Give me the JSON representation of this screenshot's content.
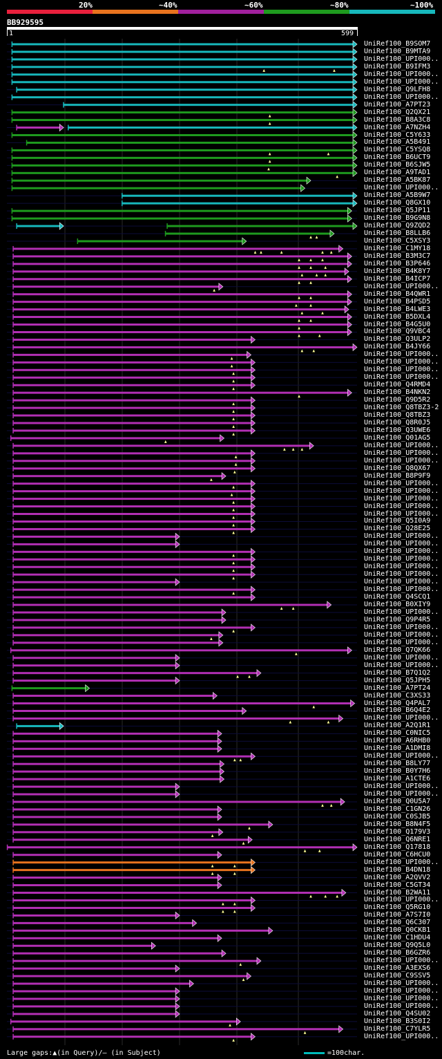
{
  "query": {
    "name": "BB929595",
    "start": "1",
    "end": "599",
    "length": 599
  },
  "legend": [
    {
      "label": "20%",
      "color": "#e8203c"
    },
    {
      "label": "~40%",
      "color": "#e8731e"
    },
    {
      "label": "~60%",
      "color": "#a0209c"
    },
    {
      "label": "~80%",
      "color": "#1e9a1e"
    },
    {
      "label": "~100%",
      "color": "#17b8bc"
    }
  ],
  "colors": {
    "cyan": "#17b8bc",
    "green": "#1e9a1e",
    "magenta": "#b22fb4",
    "orange": "#e8731e",
    "marker": "#ffff99"
  },
  "footer": {
    "gaps_text": "Large gaps:▲(in Query)/— (in Subject)",
    "scale_text": "=100char."
  },
  "chart_data": {
    "type": "alignment-map",
    "x_range": [
      1,
      599
    ],
    "hits": [
      {
        "name": "UniRef100_B9SOM7",
        "s": 10,
        "e": 599,
        "c": "cyan"
      },
      {
        "name": "UniRef100_B9MTA9",
        "s": 10,
        "e": 599,
        "c": "cyan"
      },
      {
        "name": "UniRef100_UPI000..",
        "s": 10,
        "e": 599,
        "c": "cyan"
      },
      {
        "name": "UniRef100_B9IFM3",
        "s": 10,
        "e": 599,
        "c": "cyan",
        "m": [
          440,
          560
        ]
      },
      {
        "name": "UniRef100_UPI000..",
        "s": 10,
        "e": 599,
        "c": "cyan"
      },
      {
        "name": "UniRef100_UPI000..",
        "s": 10,
        "e": 599,
        "c": "cyan"
      },
      {
        "name": "UniRef100_Q9LFH8",
        "s": 18,
        "e": 599,
        "c": "cyan"
      },
      {
        "name": "UniRef100_UPI000..",
        "s": 10,
        "e": 599,
        "c": "cyan"
      },
      {
        "name": "UniRef100_A7PT23",
        "s": 98,
        "e": 599,
        "c": "cyan"
      },
      {
        "name": "UniRef100_Q2QX21",
        "s": 10,
        "e": 599,
        "c": "green",
        "m": [
          450
        ]
      },
      {
        "name": "UniRef100_B8A3C8",
        "s": 10,
        "e": 599,
        "c": "green",
        "m": [
          450
        ]
      },
      {
        "name": "UniRef100_A7NZH4",
        "s": 18,
        "e": 98,
        "c": "magenta",
        "s2": 106,
        "e2": 599,
        "c2": "cyan"
      },
      {
        "name": "UniRef100_C5Y633",
        "s": 10,
        "e": 599,
        "c": "green"
      },
      {
        "name": "UniRef100_A5B491",
        "s": 35,
        "e": 599,
        "c": "green"
      },
      {
        "name": "UniRef100_C5YSQ8",
        "s": 10,
        "e": 599,
        "c": "green",
        "m": [
          450,
          550
        ]
      },
      {
        "name": "UniRef100_B6UCT9",
        "s": 10,
        "e": 599,
        "c": "green",
        "m": [
          450
        ]
      },
      {
        "name": "UniRef100_B6SJW5",
        "s": 10,
        "e": 599,
        "c": "green",
        "m": [
          448
        ]
      },
      {
        "name": "UniRef100_A9TAD1",
        "s": 10,
        "e": 599,
        "c": "green",
        "m": [
          565
        ]
      },
      {
        "name": "UniRef100_A5BK87",
        "s": 10,
        "e": 520,
        "c": "green"
      },
      {
        "name": "UniRef100_UPI000..",
        "s": 10,
        "e": 510,
        "c": "green"
      },
      {
        "name": "UniRef100_A5B9W7",
        "s": 198,
        "e": 599,
        "c": "cyan"
      },
      {
        "name": "UniRef100_Q8GX10",
        "s": 198,
        "e": 599,
        "c": "cyan"
      },
      {
        "name": "UniRef100_Q5JP11",
        "s": 10,
        "e": 590,
        "c": "green"
      },
      {
        "name": "UniRef100_B9G9N8",
        "s": 10,
        "e": 590,
        "c": "green"
      },
      {
        "name": "UniRef100_Q9ZQD2",
        "s": 18,
        "e": 98,
        "c": "cyan",
        "s2": 275,
        "e2": 599,
        "c2": "green"
      },
      {
        "name": "UniRef100_B8LLB6",
        "s": 272,
        "e": 560,
        "c": "green",
        "m": [
          520,
          530
        ]
      },
      {
        "name": "UniRef100_C5XSY3",
        "s": 122,
        "e": 410,
        "c": "green"
      },
      {
        "name": "UniRef100_C1MY18",
        "s": 12,
        "e": 575,
        "c": "magenta",
        "m": [
          425,
          435,
          470,
          540,
          555
        ]
      },
      {
        "name": "UniRef100_B3M3C7",
        "s": 12,
        "e": 590,
        "c": "magenta",
        "m": [
          500,
          520,
          540
        ]
      },
      {
        "name": "UniRef100_B3P646",
        "s": 12,
        "e": 590,
        "c": "magenta",
        "m": [
          500,
          520,
          545
        ]
      },
      {
        "name": "UniRef100_B4K8Y7",
        "s": 12,
        "e": 585,
        "c": "magenta",
        "m": [
          505,
          530,
          545
        ]
      },
      {
        "name": "UniRef100_B4ICP7",
        "s": 12,
        "e": 590,
        "c": "magenta",
        "m": [
          500,
          520
        ]
      },
      {
        "name": "UniRef100_UPI000..",
        "s": 12,
        "e": 370,
        "c": "magenta",
        "m": [
          355
        ]
      },
      {
        "name": "UniRef100_B4QWR1",
        "s": 12,
        "e": 590,
        "c": "magenta",
        "m": [
          500,
          520
        ]
      },
      {
        "name": "UniRef100_B4PSD5",
        "s": 12,
        "e": 590,
        "c": "magenta",
        "m": [
          495,
          520
        ]
      },
      {
        "name": "UniRef100_B4LWE3",
        "s": 12,
        "e": 585,
        "c": "magenta",
        "m": [
          505,
          540
        ]
      },
      {
        "name": "UniRef100_B5DXL4",
        "s": 12,
        "e": 590,
        "c": "magenta",
        "m": [
          500,
          520
        ]
      },
      {
        "name": "UniRef100_B4G5U0",
        "s": 12,
        "e": 590,
        "c": "magenta",
        "m": [
          500
        ]
      },
      {
        "name": "UniRef100_Q9VBC4",
        "s": 12,
        "e": 590,
        "c": "magenta",
        "m": [
          500,
          535
        ]
      },
      {
        "name": "UniRef100_Q3ULP2",
        "s": 12,
        "e": 425,
        "c": "magenta"
      },
      {
        "name": "UniRef100_B4JY66",
        "s": 12,
        "e": 599,
        "c": "magenta",
        "m": [
          505,
          525
        ]
      },
      {
        "name": "UniRef100_UPI000..",
        "s": 12,
        "e": 418,
        "c": "magenta",
        "m": [
          385
        ]
      },
      {
        "name": "UniRef100_UPI000..",
        "s": 12,
        "e": 425,
        "c": "magenta",
        "m": [
          385
        ]
      },
      {
        "name": "UniRef100_UPI000..",
        "s": 12,
        "e": 425,
        "c": "magenta",
        "m": [
          388
        ]
      },
      {
        "name": "UniRef100_UPI000..",
        "s": 12,
        "e": 425,
        "c": "magenta",
        "m": [
          388
        ]
      },
      {
        "name": "UniRef100_Q4RMD4",
        "s": 12,
        "e": 425,
        "c": "magenta",
        "m": [
          388
        ]
      },
      {
        "name": "UniRef100_B4NKN2",
        "s": 12,
        "e": 590,
        "c": "magenta",
        "m": [
          500
        ]
      },
      {
        "name": "UniRef100_Q9D5R2",
        "s": 12,
        "e": 425,
        "c": "magenta",
        "m": [
          388
        ]
      },
      {
        "name": "UniRef100_Q8TBZ3-2",
        "s": 12,
        "e": 425,
        "c": "magenta",
        "m": [
          388
        ]
      },
      {
        "name": "UniRef100_Q8TBZ3",
        "s": 12,
        "e": 425,
        "c": "magenta",
        "m": [
          388
        ]
      },
      {
        "name": "UniRef100_Q8R0J5",
        "s": 12,
        "e": 425,
        "c": "magenta",
        "m": [
          388
        ]
      },
      {
        "name": "UniRef100_Q3UWE6",
        "s": 12,
        "e": 425,
        "c": "magenta",
        "m": [
          388
        ]
      },
      {
        "name": "UniRef100_Q01AG5",
        "s": 8,
        "e": 372,
        "c": "magenta",
        "m": [
          272
        ]
      },
      {
        "name": "UniRef100_UPI000..",
        "s": 12,
        "e": 525,
        "c": "magenta",
        "m": [
          475,
          490,
          505
        ]
      },
      {
        "name": "UniRef100_UPI000..",
        "s": 12,
        "e": 425,
        "c": "magenta",
        "m": [
          392
        ]
      },
      {
        "name": "UniRef100_UPI000..",
        "s": 12,
        "e": 425,
        "c": "magenta",
        "m": [
          392
        ]
      },
      {
        "name": "UniRef100_Q8QX67",
        "s": 12,
        "e": 425,
        "c": "magenta",
        "m": [
          390
        ]
      },
      {
        "name": "UniRef100_B8P9F9",
        "s": 12,
        "e": 375,
        "c": "magenta",
        "m": [
          350
        ]
      },
      {
        "name": "UniRef100_UPI000..",
        "s": 12,
        "e": 425,
        "c": "magenta",
        "m": [
          388
        ]
      },
      {
        "name": "UniRef100_UPI000..",
        "s": 12,
        "e": 425,
        "c": "magenta",
        "m": [
          385
        ]
      },
      {
        "name": "UniRef100_UPI000..",
        "s": 12,
        "e": 425,
        "c": "magenta",
        "m": [
          388
        ]
      },
      {
        "name": "UniRef100_UPI000..",
        "s": 12,
        "e": 425,
        "c": "magenta",
        "m": [
          388
        ]
      },
      {
        "name": "UniRef100_UPI000..",
        "s": 12,
        "e": 425,
        "c": "magenta",
        "m": [
          388
        ]
      },
      {
        "name": "UniRef100_Q5I0A9",
        "s": 12,
        "e": 425,
        "c": "magenta",
        "m": [
          388
        ]
      },
      {
        "name": "UniRef100_Q28E25",
        "s": 12,
        "e": 425,
        "c": "magenta",
        "m": [
          388
        ]
      },
      {
        "name": "UniRef100_UPI000..",
        "s": 12,
        "e": 296,
        "c": "magenta"
      },
      {
        "name": "UniRef100_UPI000..",
        "s": 12,
        "e": 296,
        "c": "magenta"
      },
      {
        "name": "UniRef100_UPI000..",
        "s": 12,
        "e": 425,
        "c": "magenta",
        "m": [
          388
        ]
      },
      {
        "name": "UniRef100_UPI000..",
        "s": 12,
        "e": 425,
        "c": "magenta",
        "m": [
          388
        ]
      },
      {
        "name": "UniRef100_UPI000..",
        "s": 12,
        "e": 425,
        "c": "magenta",
        "m": [
          388
        ]
      },
      {
        "name": "UniRef100_UPI000..",
        "s": 12,
        "e": 425,
        "c": "magenta",
        "m": [
          388
        ]
      },
      {
        "name": "UniRef100_UPI000..",
        "s": 12,
        "e": 296,
        "c": "magenta"
      },
      {
        "name": "UniRef100_UPI000..",
        "s": 12,
        "e": 425,
        "c": "magenta",
        "m": [
          388
        ]
      },
      {
        "name": "UniRef100_Q4SCQ1",
        "s": 12,
        "e": 425,
        "c": "magenta"
      },
      {
        "name": "UniRef100_B0XIY9",
        "s": 12,
        "e": 555,
        "c": "magenta",
        "m": [
          470,
          490
        ]
      },
      {
        "name": "UniRef100_UPI000..",
        "s": 12,
        "e": 375,
        "c": "magenta"
      },
      {
        "name": "UniRef100_Q9P4R5",
        "s": 12,
        "e": 375,
        "c": "magenta"
      },
      {
        "name": "UniRef100_UPI000..",
        "s": 12,
        "e": 425,
        "c": "magenta",
        "m": [
          388
        ]
      },
      {
        "name": "UniRef100_UPI000..",
        "s": 12,
        "e": 370,
        "c": "magenta",
        "m": [
          350
        ]
      },
      {
        "name": "UniRef100_UPI000..",
        "s": 12,
        "e": 370,
        "c": "magenta"
      },
      {
        "name": "UniRef100_Q7QK66",
        "s": 8,
        "e": 590,
        "c": "magenta",
        "m": [
          495
        ]
      },
      {
        "name": "UniRef100_UPI000..",
        "s": 12,
        "e": 296,
        "c": "magenta"
      },
      {
        "name": "UniRef100_UPI000..",
        "s": 12,
        "e": 296,
        "c": "magenta"
      },
      {
        "name": "UniRef100_B7Q1Q2",
        "s": 12,
        "e": 435,
        "c": "magenta",
        "m": [
          395,
          415
        ]
      },
      {
        "name": "UniRef100_Q5JPH5",
        "s": 12,
        "e": 296,
        "c": "magenta"
      },
      {
        "name": "UniRef100_A7PT24",
        "s": 10,
        "e": 142,
        "c": "green"
      },
      {
        "name": "UniRef100_C3XS33",
        "s": 12,
        "e": 360,
        "c": "magenta"
      },
      {
        "name": "UniRef100_Q4PAL7",
        "s": 12,
        "e": 595,
        "c": "magenta",
        "m": [
          525
        ]
      },
      {
        "name": "UniRef100_B6Q4E2",
        "s": 12,
        "e": 410,
        "c": "magenta"
      },
      {
        "name": "UniRef100_UPI000..",
        "s": 12,
        "e": 575,
        "c": "magenta",
        "m": [
          485,
          550
        ]
      },
      {
        "name": "UniRef100_A2Q1R1",
        "s": 18,
        "e": 98,
        "c": "cyan"
      },
      {
        "name": "UniRef100_C0NIC5",
        "s": 12,
        "e": 368,
        "c": "magenta"
      },
      {
        "name": "UniRef100_A6RHB0",
        "s": 12,
        "e": 368,
        "c": "magenta"
      },
      {
        "name": "UniRef100_A1DMI8",
        "s": 12,
        "e": 368,
        "c": "magenta"
      },
      {
        "name": "UniRef100_UPI000..",
        "s": 12,
        "e": 425,
        "c": "magenta",
        "m": [
          390,
          400
        ]
      },
      {
        "name": "UniRef100_B8LY77",
        "s": 12,
        "e": 372,
        "c": "magenta"
      },
      {
        "name": "UniRef100_B0Y7H6",
        "s": 12,
        "e": 372,
        "c": "magenta"
      },
      {
        "name": "UniRef100_A1CTE6",
        "s": 12,
        "e": 372,
        "c": "magenta"
      },
      {
        "name": "UniRef100_UPI000..",
        "s": 12,
        "e": 296,
        "c": "magenta"
      },
      {
        "name": "UniRef100_UPI000..",
        "s": 12,
        "e": 296,
        "c": "magenta"
      },
      {
        "name": "UniRef100_Q0U5A7",
        "s": 12,
        "e": 578,
        "c": "magenta",
        "m": [
          540,
          555
        ]
      },
      {
        "name": "UniRef100_C1GN26",
        "s": 12,
        "e": 368,
        "c": "magenta"
      },
      {
        "name": "UniRef100_C0SJB5",
        "s": 12,
        "e": 368,
        "c": "magenta"
      },
      {
        "name": "UniRef100_B8N4F5",
        "s": 12,
        "e": 455,
        "c": "magenta",
        "m": [
          415
        ]
      },
      {
        "name": "UniRef100_Q179V3",
        "s": 12,
        "e": 370,
        "c": "magenta",
        "m": [
          352
        ]
      },
      {
        "name": "UniRef100_Q6NRE1",
        "s": 12,
        "e": 420,
        "c": "magenta",
        "m": [
          405
        ]
      },
      {
        "name": "UniRef100_Q17818",
        "s": 2,
        "e": 599,
        "c": "magenta",
        "m": [
          510,
          535
        ]
      },
      {
        "name": "UniRef100_C6HCU0",
        "s": 12,
        "e": 368,
        "c": "magenta"
      },
      {
        "name": "UniRef100_UPI000..",
        "s": 12,
        "e": 425,
        "c": "orange",
        "m": [
          352,
          390
        ]
      },
      {
        "name": "UniRef100_B4DN18",
        "s": 12,
        "e": 425,
        "c": "orange",
        "m": [
          352,
          390
        ]
      },
      {
        "name": "UniRef100_A2QVV2",
        "s": 12,
        "e": 368,
        "c": "magenta"
      },
      {
        "name": "UniRef100_C5GT34",
        "s": 12,
        "e": 368,
        "c": "magenta"
      },
      {
        "name": "UniRef100_B2WA11",
        "s": 12,
        "e": 580,
        "c": "magenta",
        "m": [
          520,
          545,
          565
        ]
      },
      {
        "name": "UniRef100_UPI000..",
        "s": 12,
        "e": 425,
        "c": "magenta",
        "m": [
          370,
          390
        ]
      },
      {
        "name": "UniRef100_Q5RG10",
        "s": 12,
        "e": 425,
        "c": "magenta",
        "m": [
          370,
          390
        ]
      },
      {
        "name": "UniRef100_A7S7I0",
        "s": 12,
        "e": 296,
        "c": "magenta"
      },
      {
        "name": "UniRef100_Q6C307",
        "s": 12,
        "e": 325,
        "c": "magenta"
      },
      {
        "name": "UniRef100_Q0CKB1",
        "s": 12,
        "e": 455,
        "c": "magenta"
      },
      {
        "name": "UniRef100_C1HDU4",
        "s": 12,
        "e": 368,
        "c": "magenta"
      },
      {
        "name": "UniRef100_Q9Q5L0",
        "s": 12,
        "e": 255,
        "c": "magenta"
      },
      {
        "name": "UniRef100_B6GZR6",
        "s": 12,
        "e": 375,
        "c": "magenta"
      },
      {
        "name": "UniRef100_UPI000..",
        "s": 12,
        "e": 435,
        "c": "magenta",
        "m": [
          400
        ]
      },
      {
        "name": "UniRef100_A3EXS6",
        "s": 12,
        "e": 296,
        "c": "magenta"
      },
      {
        "name": "UniRef100_C9SSV5",
        "s": 12,
        "e": 418,
        "c": "magenta",
        "m": [
          405
        ]
      },
      {
        "name": "UniRef100_UPI000..",
        "s": 12,
        "e": 320,
        "c": "magenta"
      },
      {
        "name": "UniRef100_UPI000..",
        "s": 12,
        "e": 296,
        "c": "magenta"
      },
      {
        "name": "UniRef100_UPI000..",
        "s": 12,
        "e": 296,
        "c": "magenta"
      },
      {
        "name": "UniRef100_UPI000..",
        "s": 12,
        "e": 296,
        "c": "magenta"
      },
      {
        "name": "UniRef100_Q4SU02",
        "s": 12,
        "e": 296,
        "c": "magenta"
      },
      {
        "name": "UniRef100_B3S0I2",
        "s": 8,
        "e": 400,
        "c": "magenta",
        "m": [
          382
        ]
      },
      {
        "name": "UniRef100_C7YLR5",
        "s": 12,
        "e": 575,
        "c": "magenta",
        "m": [
          510
        ]
      },
      {
        "name": "UniRef100_UPI000..",
        "s": 12,
        "e": 425,
        "c": "magenta",
        "m": [
          388
        ]
      }
    ]
  }
}
